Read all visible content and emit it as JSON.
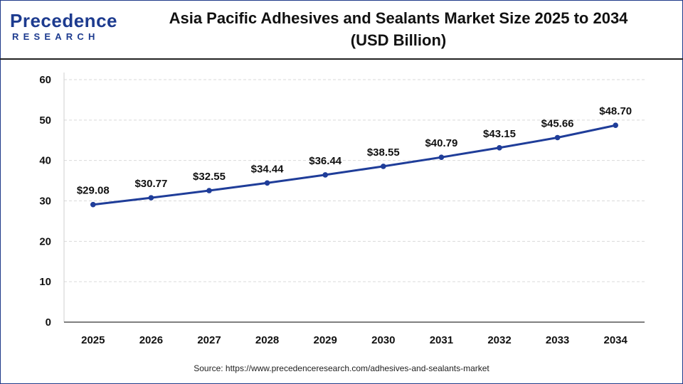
{
  "header": {
    "logo_top": "Precedence",
    "logo_bottom": "RESEARCH",
    "title_line1": "Asia Pacific Adhesives and Sealants Market Size 2025 to 2034",
    "title_line2": "(USD Billion)"
  },
  "source": "Source: https://www.precedenceresearch.com/adhesives-and-sealants-market",
  "colors": {
    "line": "#1f3d99",
    "point": "#1f3d99",
    "grid": "#d9d9d9",
    "brand": "#1d3b8f"
  },
  "chart_data": {
    "type": "line",
    "title": "Asia Pacific Adhesives and Sealants Market Size 2025 to 2034 (USD Billion)",
    "xlabel": "",
    "ylabel": "",
    "categories": [
      "2025",
      "2026",
      "2027",
      "2028",
      "2029",
      "2030",
      "2031",
      "2032",
      "2033",
      "2034"
    ],
    "series": [
      {
        "values": [
          29.08,
          30.77,
          32.55,
          34.44,
          36.44,
          38.55,
          40.79,
          43.15,
          45.66,
          48.7
        ],
        "labels": [
          "$29.08",
          "$30.77",
          "$32.55",
          "$34.44",
          "$36.44",
          "$38.55",
          "$40.79",
          "$43.15",
          "$45.66",
          "$48.70"
        ]
      }
    ],
    "ylim": [
      0,
      60
    ],
    "yticks": [
      0,
      10,
      20,
      30,
      40,
      50,
      60
    ],
    "grid": "horizontal-dashed",
    "legend": "none"
  }
}
